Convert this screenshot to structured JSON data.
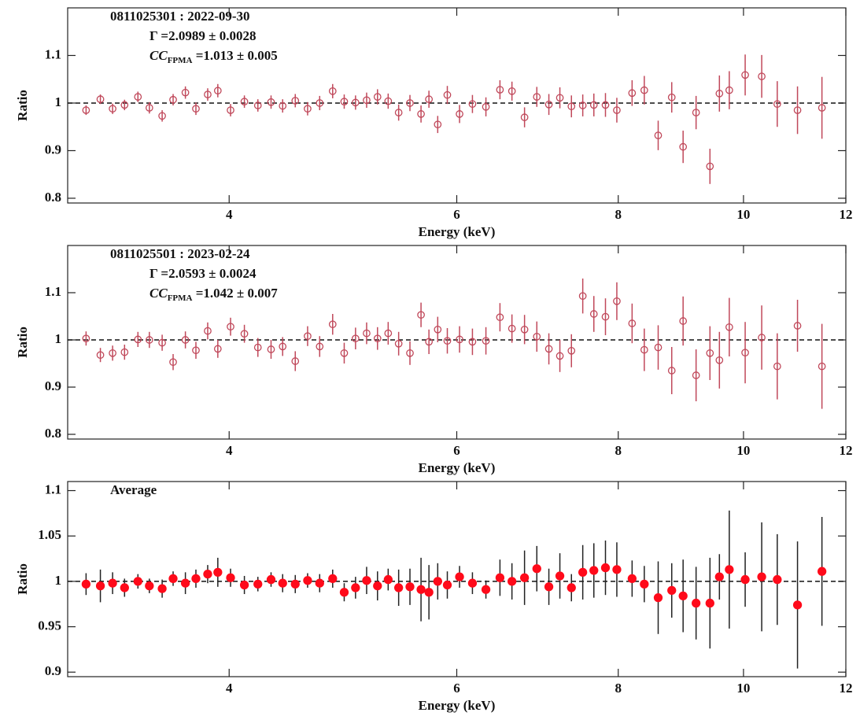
{
  "chart_data": [
    {
      "type": "scatter",
      "xlabel": "Energy (keV)",
      "ylabel": "Ratio",
      "log_x": true,
      "xlim": [
        3,
        12
      ],
      "xticks": [
        4,
        6,
        8,
        10,
        12
      ],
      "ylim": [
        0.79,
        1.2
      ],
      "yticks": [
        0.8,
        0.9,
        1,
        1.1
      ],
      "reference_line": 1,
      "color": "#c0485a",
      "error_color": "#c0485a",
      "marker": "open",
      "annotations": [
        "0811025301 : 2022-09-30",
        "Γ =2.0989 ± 0.0028",
        {
          "text": "CC",
          "subscript": "FPMA",
          "after": " =1.013 ± 0.005"
        }
      ],
      "x": [
        3.1,
        3.18,
        3.25,
        3.32,
        3.4,
        3.47,
        3.55,
        3.62,
        3.7,
        3.77,
        3.85,
        3.92,
        4.01,
        4.11,
        4.21,
        4.31,
        4.4,
        4.5,
        4.6,
        4.7,
        4.81,
        4.91,
        5.01,
        5.11,
        5.21,
        5.31,
        5.41,
        5.52,
        5.63,
        5.71,
        5.8,
        5.9,
        6.03,
        6.17,
        6.32,
        6.48,
        6.62,
        6.77,
        6.92,
        7.07,
        7.21,
        7.36,
        7.51,
        7.66,
        7.82,
        7.98,
        8.2,
        8.38,
        8.59,
        8.8,
        8.98,
        9.19,
        9.42,
        9.58,
        9.75,
        10.03,
        10.33,
        10.62,
        11.01,
        11.5
      ],
      "values": [
        0.985,
        1.008,
        0.988,
        0.996,
        1.013,
        0.99,
        0.973,
        1.007,
        1.022,
        0.988,
        1.018,
        1.026,
        0.985,
        1.003,
        0.995,
        1.002,
        0.994,
        1.005,
        0.988,
        1.0,
        1.025,
        1.003,
        1.001,
        1.006,
        1.013,
        1.004,
        0.98,
        1.0,
        0.977,
        1.008,
        0.955,
        1.017,
        0.977,
        0.998,
        0.992,
        1.028,
        1.025,
        0.97,
        1.013,
        0.997,
        1.011,
        0.993,
        0.995,
        0.996,
        0.996,
        0.985,
        1.021,
        1.027,
        0.932,
        1.012,
        0.908,
        0.98,
        0.867,
        1.02,
        1.027,
        1.059,
        1.056,
        0.998,
        0.985,
        0.99
      ],
      "errors": [
        0.01,
        0.01,
        0.011,
        0.011,
        0.011,
        0.012,
        0.012,
        0.012,
        0.013,
        0.013,
        0.013,
        0.014,
        0.013,
        0.013,
        0.013,
        0.014,
        0.014,
        0.014,
        0.014,
        0.015,
        0.015,
        0.015,
        0.015,
        0.016,
        0.016,
        0.016,
        0.017,
        0.017,
        0.018,
        0.018,
        0.018,
        0.019,
        0.019,
        0.019,
        0.02,
        0.02,
        0.02,
        0.021,
        0.021,
        0.022,
        0.022,
        0.023,
        0.023,
        0.024,
        0.025,
        0.026,
        0.027,
        0.03,
        0.031,
        0.032,
        0.034,
        0.035,
        0.037,
        0.038,
        0.04,
        0.043,
        0.045,
        0.048,
        0.05,
        0.065
      ]
    },
    {
      "type": "scatter",
      "xlabel": "Energy (keV)",
      "ylabel": "Ratio",
      "log_x": true,
      "xlim": [
        3,
        12
      ],
      "xticks": [
        4,
        6,
        8,
        10,
        12
      ],
      "ylim": [
        0.79,
        1.2
      ],
      "yticks": [
        0.8,
        0.9,
        1,
        1.1
      ],
      "reference_line": 1,
      "color": "#c0485a",
      "error_color": "#c0485a",
      "marker": "open",
      "annotations": [
        "0811025501 : 2023-02-24",
        "Γ =2.0593 ± 0.0024",
        {
          "text": "CC",
          "subscript": "FPMA",
          "after": " =1.042 ± 0.007"
        }
      ],
      "x": [
        3.1,
        3.18,
        3.25,
        3.32,
        3.4,
        3.47,
        3.55,
        3.62,
        3.7,
        3.77,
        3.85,
        3.92,
        4.01,
        4.11,
        4.21,
        4.31,
        4.4,
        4.5,
        4.6,
        4.7,
        4.81,
        4.91,
        5.01,
        5.11,
        5.21,
        5.31,
        5.41,
        5.52,
        5.63,
        5.71,
        5.8,
        5.9,
        6.03,
        6.17,
        6.32,
        6.48,
        6.62,
        6.77,
        6.92,
        7.07,
        7.21,
        7.36,
        7.51,
        7.66,
        7.82,
        7.98,
        8.2,
        8.38,
        8.59,
        8.8,
        8.98,
        9.19,
        9.42,
        9.58,
        9.75,
        10.03,
        10.33,
        10.62,
        11.01,
        11.5
      ],
      "values": [
        1.003,
        0.968,
        0.972,
        0.974,
        1.001,
        1.0,
        0.994,
        0.953,
        1.0,
        0.978,
        1.019,
        0.981,
        1.028,
        1.013,
        0.984,
        0.98,
        0.986,
        0.955,
        1.008,
        0.986,
        1.033,
        0.972,
        1.003,
        1.014,
        1.003,
        1.014,
        0.992,
        0.972,
        1.053,
        0.996,
        1.022,
        0.998,
        1.001,
        0.996,
        0.998,
        1.048,
        1.024,
        1.022,
        1.007,
        0.981,
        0.966,
        0.977,
        1.093,
        1.055,
        1.049,
        1.082,
        1.035,
        0.979,
        0.984,
        0.935,
        1.04,
        0.925,
        0.972,
        0.957,
        1.027,
        0.973,
        1.005,
        0.944,
        1.03,
        0.944
      ],
      "errors": [
        0.015,
        0.015,
        0.016,
        0.016,
        0.016,
        0.017,
        0.017,
        0.017,
        0.018,
        0.018,
        0.018,
        0.019,
        0.019,
        0.019,
        0.02,
        0.02,
        0.02,
        0.021,
        0.021,
        0.022,
        0.022,
        0.022,
        0.023,
        0.023,
        0.024,
        0.024,
        0.025,
        0.025,
        0.026,
        0.026,
        0.027,
        0.027,
        0.028,
        0.028,
        0.029,
        0.03,
        0.03,
        0.031,
        0.032,
        0.033,
        0.034,
        0.035,
        0.037,
        0.038,
        0.039,
        0.04,
        0.042,
        0.045,
        0.047,
        0.05,
        0.052,
        0.055,
        0.057,
        0.06,
        0.062,
        0.065,
        0.068,
        0.07,
        0.055,
        0.09
      ]
    },
    {
      "type": "scatter",
      "xlabel": "Energy (keV)",
      "ylabel": "Ratio",
      "log_x": true,
      "xlim": [
        3,
        12
      ],
      "xticks": [
        4,
        6,
        8,
        10,
        12
      ],
      "ylim": [
        0.895,
        1.11
      ],
      "yticks": [
        0.9,
        0.95,
        1,
        1.05,
        1.1
      ],
      "reference_line": 1,
      "color": "#ff0a1a",
      "error_color": "#222222",
      "marker": "filled",
      "annotations": [
        "Average"
      ],
      "x": [
        3.1,
        3.18,
        3.25,
        3.32,
        3.4,
        3.47,
        3.55,
        3.62,
        3.7,
        3.77,
        3.85,
        3.92,
        4.01,
        4.11,
        4.21,
        4.31,
        4.4,
        4.5,
        4.6,
        4.7,
        4.81,
        4.91,
        5.01,
        5.11,
        5.21,
        5.31,
        5.41,
        5.52,
        5.63,
        5.71,
        5.8,
        5.9,
        6.03,
        6.17,
        6.32,
        6.48,
        6.62,
        6.77,
        6.92,
        7.07,
        7.21,
        7.36,
        7.51,
        7.66,
        7.82,
        7.98,
        8.2,
        8.38,
        8.59,
        8.8,
        8.98,
        9.19,
        9.42,
        9.58,
        9.75,
        10.03,
        10.33,
        10.62,
        11.01,
        11.5
      ],
      "values": [
        0.997,
        0.995,
        0.998,
        0.993,
        1.0,
        0.995,
        0.992,
        1.003,
        0.998,
        1.003,
        1.008,
        1.01,
        1.004,
        0.996,
        0.997,
        1.002,
        0.998,
        0.997,
        1.001,
        0.998,
        1.003,
        0.988,
        0.993,
        1.001,
        0.995,
        1.002,
        0.993,
        0.994,
        0.991,
        0.988,
        1.0,
        0.996,
        1.005,
        0.998,
        0.991,
        1.004,
        1.0,
        1.004,
        1.014,
        0.994,
        1.006,
        0.993,
        1.01,
        1.012,
        1.015,
        1.013,
        1.003,
        0.997,
        0.982,
        0.99,
        0.984,
        0.976,
        0.976,
        1.005,
        1.013,
        1.002,
        1.005,
        1.002,
        0.974,
        1.011
      ],
      "errors": [
        0.012,
        0.018,
        0.012,
        0.01,
        0.008,
        0.008,
        0.01,
        0.008,
        0.012,
        0.01,
        0.01,
        0.016,
        0.01,
        0.01,
        0.008,
        0.008,
        0.01,
        0.01,
        0.008,
        0.01,
        0.01,
        0.01,
        0.012,
        0.015,
        0.016,
        0.012,
        0.02,
        0.02,
        0.035,
        0.03,
        0.02,
        0.015,
        0.012,
        0.012,
        0.01,
        0.02,
        0.02,
        0.03,
        0.025,
        0.02,
        0.025,
        0.015,
        0.03,
        0.03,
        0.03,
        0.03,
        0.02,
        0.02,
        0.04,
        0.03,
        0.04,
        0.04,
        0.05,
        0.025,
        0.065,
        0.03,
        0.06,
        0.05,
        0.07,
        0.06
      ]
    }
  ]
}
